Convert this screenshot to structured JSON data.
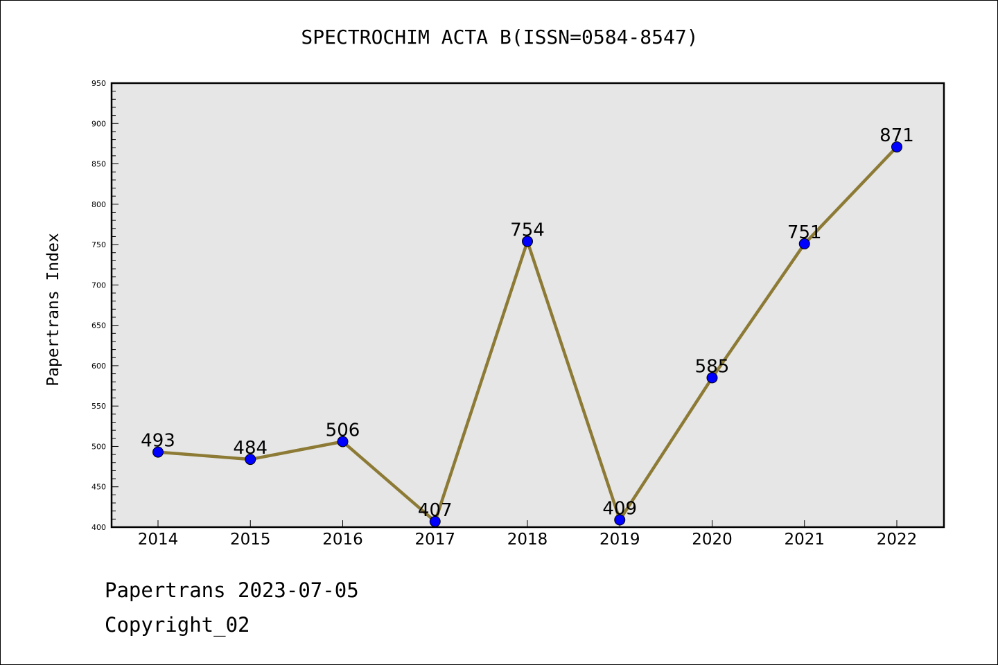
{
  "chart_data": {
    "type": "line",
    "title": "SPECTROCHIM ACTA B(ISSN=0584-8547)",
    "xlabel": "",
    "ylabel": "Papertrans Index",
    "categories": [
      "2014",
      "2015",
      "2016",
      "2017",
      "2018",
      "2019",
      "2020",
      "2021",
      "2022"
    ],
    "series": [
      {
        "values": [
          493,
          484,
          506,
          407,
          754,
          409,
          585,
          751,
          871
        ],
        "data_labels": [
          "493",
          "484",
          "506",
          "407",
          "754",
          "409",
          "585",
          "751",
          "871"
        ]
      }
    ],
    "ylim": [
      400,
      950
    ],
    "yticks": [
      "400",
      "450",
      "500",
      "550",
      "600",
      "650",
      "700",
      "750",
      "800",
      "850",
      "900",
      "950"
    ],
    "grid": false,
    "legend": "none",
    "colors": {
      "line": "#8C7A35",
      "marker": "#0000FF",
      "plot_background": "#E6E6E6"
    }
  },
  "footer": {
    "date_text": "Papertrans 2023-07-05",
    "copyright_text": "Copyright_02"
  }
}
